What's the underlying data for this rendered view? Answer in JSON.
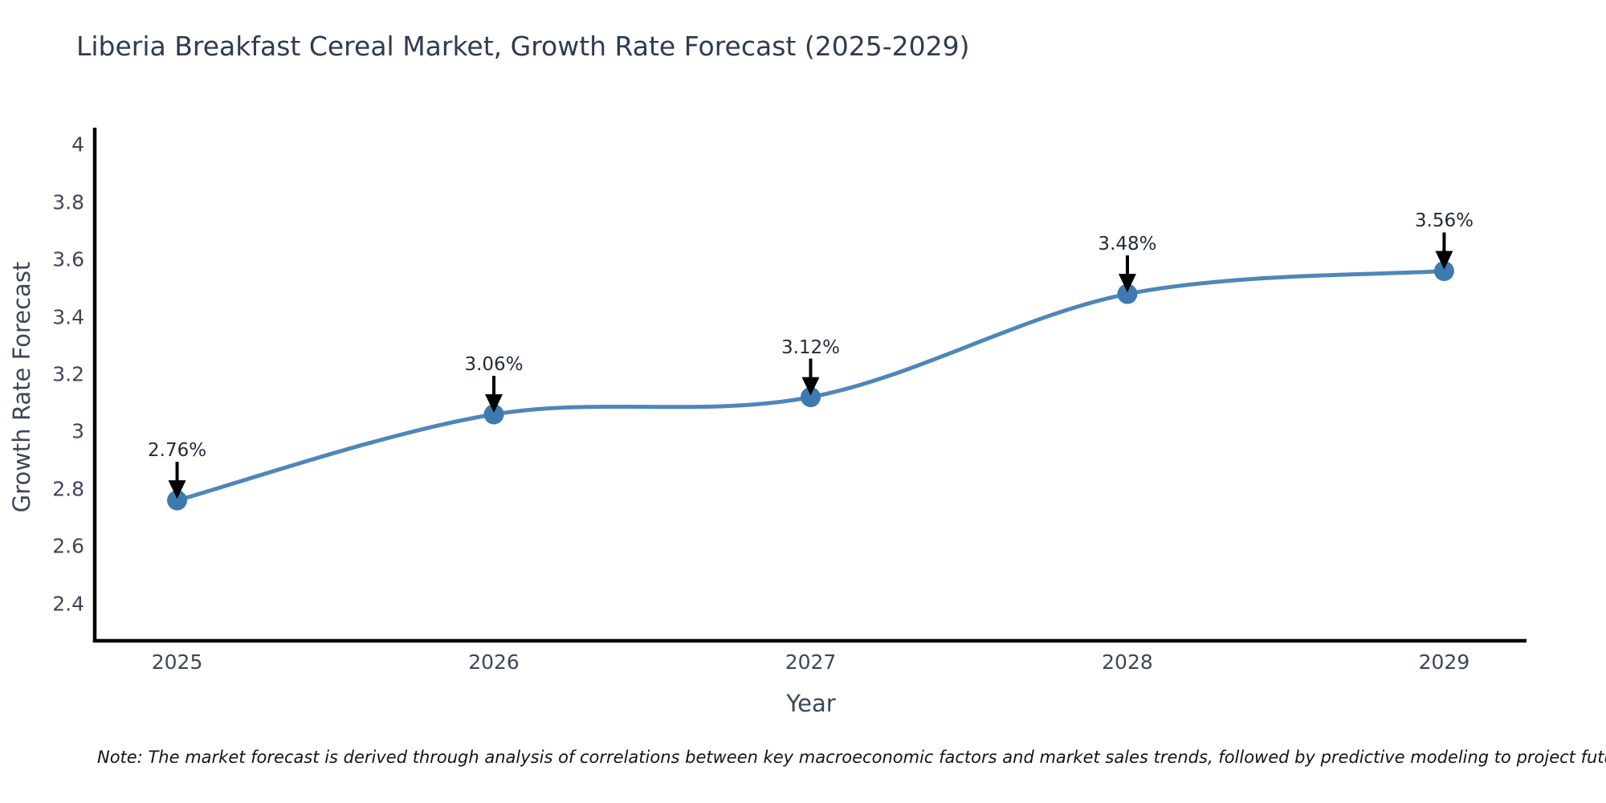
{
  "note": "Note: The market forecast is derived through analysis of correlations between key macroeconomic factors and market sales trends, followed by predictive modeling to project future sales",
  "chart_data": {
    "type": "line",
    "title": "Liberia Breakfast Cereal Market, Growth Rate Forecast (2025-2029)",
    "xlabel": "Year",
    "ylabel": "Growth Rate Forecast",
    "x": [
      2025,
      2026,
      2027,
      2028,
      2029
    ],
    "values": [
      2.76,
      3.06,
      3.12,
      3.48,
      3.56
    ],
    "point_labels": [
      "2.76%",
      "3.06%",
      "3.12%",
      "3.48%",
      "3.56%"
    ],
    "xtick_labels": [
      "2025",
      "2026",
      "2027",
      "2028",
      "2029"
    ],
    "ytick_labels": [
      "2.4",
      "2.6",
      "2.8",
      "3",
      "3.2",
      "3.4",
      "3.6",
      "3.8",
      "4"
    ],
    "xlim": [
      2024.74,
      2029.26
    ],
    "ylim": [
      2.27,
      4.06
    ],
    "grid": false,
    "legend": null,
    "curve": "smooth",
    "markers": true,
    "annotations": "value labels with black arrows pointing to each data point",
    "line_color": "#4e86ba",
    "marker_color": "#3e79b0",
    "arrow_color": "#000000",
    "axis_color": "#000000",
    "background_color": "#ffffff"
  }
}
